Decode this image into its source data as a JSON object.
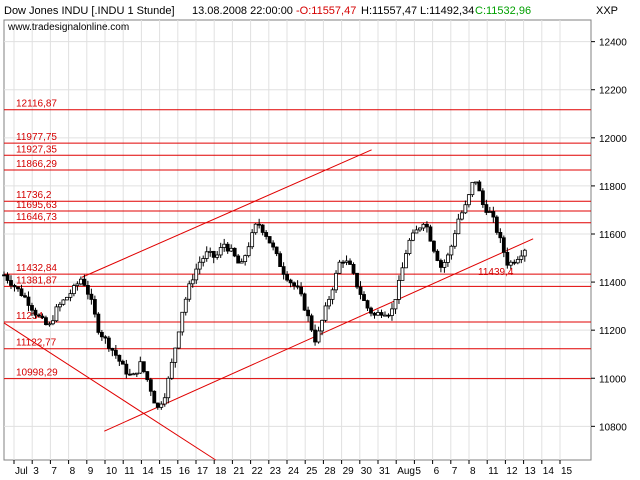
{
  "header": {
    "symbol": "Dow Jones INDU [.INDU  1 Stunde]",
    "datetime": "13.08.2008 22:00:00",
    "open": "-O:11557,47",
    "high": "H:11557,47",
    "low": "L:11492,34",
    "close": "C:11532,96",
    "watermark": "www.tradesignalonline.com",
    "axis_unit": "XXP"
  },
  "colors": {
    "background": "#ffffff",
    "grid": "#e0e0e0",
    "level_line": "#e00000",
    "level_text": "#d40000",
    "candle_up": "#ffffff",
    "candle_down": "#000000",
    "trend_line": "#e00000",
    "open_text": "#d40000",
    "close_text": "#00a000",
    "frame": "#808080"
  },
  "chart_data": {
    "type": "candlestick",
    "title": "Dow Jones INDU [.INDU  1 Stunde]",
    "ylim": [
      10660,
      12490
    ],
    "y_ticks": [
      10800,
      11000,
      11200,
      11400,
      11600,
      11800,
      12000,
      12200,
      12400
    ],
    "y_tick_labels": [
      "10800",
      "11000",
      "11200",
      "11400",
      "11600",
      "11800",
      "12000",
      "12200",
      "12400"
    ],
    "x_tick_labels": [
      "Jul",
      "3",
      "7",
      "8",
      "9",
      "10",
      "11",
      "14",
      "15",
      "16",
      "17",
      "18",
      "21",
      "22",
      "23",
      "24",
      "25",
      "28",
      "29",
      "30",
      "31",
      "Aug",
      "5",
      "6",
      "7",
      "8",
      "11",
      "12",
      "13",
      "14",
      "15"
    ],
    "levels": [
      {
        "label": "12116,87",
        "value": 12116.87
      },
      {
        "label": "11977,75",
        "value": 11977.75
      },
      {
        "label": "11927,35",
        "value": 11927.35
      },
      {
        "label": "11866,29",
        "value": 11866.29
      },
      {
        "label": "11736,2",
        "value": 11736.2
      },
      {
        "label": "11695,63",
        "value": 11695.63
      },
      {
        "label": "11646,73",
        "value": 11646.73
      },
      {
        "label": "11432,84",
        "value": 11432.84
      },
      {
        "label": "11381,87",
        "value": 11381.87
      },
      {
        "label": "11234",
        "value": 11234
      },
      {
        "label": "11122,77",
        "value": 11122.77
      },
      {
        "label": "10998,29",
        "value": 10998.29
      }
    ],
    "trend_annotation": "11439,4",
    "price_path": [
      [
        0,
        11430
      ],
      [
        0.02,
        11380
      ],
      [
        0.04,
        11330
      ],
      [
        0.06,
        11260
      ],
      [
        0.08,
        11210
      ],
      [
        0.095,
        11290
      ],
      [
        0.11,
        11330
      ],
      [
        0.125,
        11370
      ],
      [
        0.14,
        11420
      ],
      [
        0.155,
        11330
      ],
      [
        0.17,
        11200
      ],
      [
        0.185,
        11150
      ],
      [
        0.2,
        11100
      ],
      [
        0.215,
        11040
      ],
      [
        0.23,
        11000
      ],
      [
        0.245,
        11060
      ],
      [
        0.26,
        10980
      ],
      [
        0.275,
        10870
      ],
      [
        0.29,
        10940
      ],
      [
        0.305,
        11100
      ],
      [
        0.32,
        11280
      ],
      [
        0.335,
        11400
      ],
      [
        0.35,
        11480
      ],
      [
        0.365,
        11520
      ],
      [
        0.38,
        11500
      ],
      [
        0.395,
        11560
      ],
      [
        0.41,
        11520
      ],
      [
        0.425,
        11460
      ],
      [
        0.44,
        11560
      ],
      [
        0.455,
        11650
      ],
      [
        0.47,
        11600
      ],
      [
        0.485,
        11530
      ],
      [
        0.5,
        11450
      ],
      [
        0.515,
        11400
      ],
      [
        0.53,
        11360
      ],
      [
        0.545,
        11260
      ],
      [
        0.56,
        11150
      ],
      [
        0.575,
        11270
      ],
      [
        0.59,
        11380
      ],
      [
        0.605,
        11500
      ],
      [
        0.62,
        11470
      ],
      [
        0.635,
        11380
      ],
      [
        0.65,
        11300
      ],
      [
        0.665,
        11260
      ],
      [
        0.68,
        11280
      ],
      [
        0.695,
        11270
      ],
      [
        0.71,
        11400
      ],
      [
        0.725,
        11560
      ],
      [
        0.74,
        11610
      ],
      [
        0.755,
        11660
      ],
      [
        0.77,
        11550
      ],
      [
        0.785,
        11460
      ],
      [
        0.8,
        11520
      ],
      [
        0.815,
        11660
      ],
      [
        0.83,
        11720
      ],
      [
        0.845,
        11840
      ],
      [
        0.86,
        11720
      ],
      [
        0.875,
        11680
      ],
      [
        0.89,
        11580
      ],
      [
        0.905,
        11470
      ],
      [
        0.92,
        11500
      ],
      [
        0.935,
        11540
      ]
    ]
  }
}
